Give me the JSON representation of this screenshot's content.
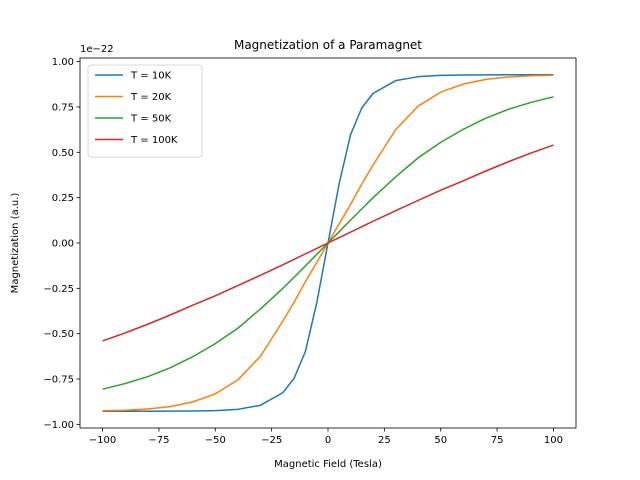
{
  "chart_data": {
    "type": "line",
    "title": "Magnetization of a Paramagnet",
    "xlabel": "Magnetic Field (Tesla)",
    "ylabel": "Magnetization (a.u.)",
    "y_offset_label": "1e−22",
    "xlim": [
      -110,
      110
    ],
    "ylim": [
      -1.02,
      1.02
    ],
    "xticks": [
      -100,
      -75,
      -50,
      -25,
      0,
      25,
      50,
      75,
      100
    ],
    "xtick_labels": [
      "−100",
      "−75",
      "−50",
      "−25",
      "0",
      "25",
      "50",
      "75",
      "100"
    ],
    "yticks": [
      -1.0,
      -0.75,
      -0.5,
      -0.25,
      0.0,
      0.25,
      0.5,
      0.75,
      1.0
    ],
    "ytick_labels": [
      "−1.00",
      "−0.75",
      "−0.50",
      "−0.25",
      "0.00",
      "0.25",
      "0.50",
      "0.75",
      "1.00"
    ],
    "grid": false,
    "legend_position": "top-left",
    "saturation": 0.928,
    "x": [
      -100,
      -90,
      -80,
      -70,
      -60,
      -50,
      -40,
      -30,
      -20,
      -15,
      -10,
      -5,
      0,
      5,
      10,
      15,
      20,
      30,
      40,
      50,
      60,
      70,
      80,
      90,
      100
    ],
    "series": [
      {
        "name": "T = 10K",
        "color": "#1f77b4",
        "values": [
          -0.928,
          -0.928,
          -0.928,
          -0.927,
          -0.926,
          -0.924,
          -0.917,
          -0.895,
          -0.825,
          -0.745,
          -0.597,
          -0.33,
          0.0,
          0.33,
          0.597,
          0.745,
          0.825,
          0.895,
          0.917,
          0.924,
          0.926,
          0.927,
          0.928,
          0.928,
          0.928
        ]
      },
      {
        "name": "T = 20K",
        "color": "#ff7f0e",
        "values": [
          -0.925,
          -0.922,
          -0.915,
          -0.902,
          -0.876,
          -0.832,
          -0.755,
          -0.625,
          -0.43,
          -0.325,
          -0.213,
          -0.107,
          0.0,
          0.107,
          0.213,
          0.325,
          0.43,
          0.625,
          0.755,
          0.832,
          0.876,
          0.902,
          0.915,
          0.922,
          0.925
        ]
      },
      {
        "name": "T = 50K",
        "color": "#2ca02c",
        "values": [
          -0.806,
          -0.775,
          -0.737,
          -0.688,
          -0.627,
          -0.555,
          -0.47,
          -0.364,
          -0.25,
          -0.188,
          -0.126,
          -0.063,
          0.0,
          0.063,
          0.126,
          0.188,
          0.25,
          0.364,
          0.47,
          0.555,
          0.627,
          0.688,
          0.737,
          0.775,
          0.806
        ]
      },
      {
        "name": "T = 100K",
        "color": "#d62728",
        "values": [
          -0.54,
          -0.496,
          -0.448,
          -0.397,
          -0.343,
          -0.291,
          -0.235,
          -0.178,
          -0.12,
          -0.09,
          -0.06,
          -0.03,
          0.0,
          0.03,
          0.06,
          0.09,
          0.12,
          0.178,
          0.235,
          0.291,
          0.343,
          0.397,
          0.448,
          0.496,
          0.54
        ]
      }
    ]
  }
}
